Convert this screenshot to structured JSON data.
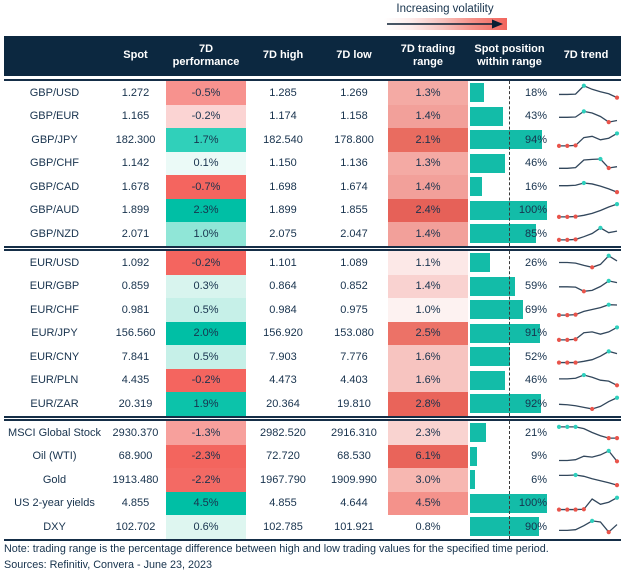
{
  "chart_data": {
    "type": "table",
    "legend_label": "Increasing volatility",
    "columns": [
      "",
      "Spot",
      "7D performance",
      "7D high",
      "7D low",
      "7D trading range",
      "Spot position within range",
      "7D trend"
    ],
    "colors": {
      "header_bg": "#0c2840",
      "text": "#17324d",
      "accent_teal": "#00bfa5",
      "accent_red": "#f4655f",
      "bar_teal": "#13bca8",
      "spark_line": "#32475c",
      "spark_max_dot": "#2ed0bd",
      "spark_min_dot": "#e9544b"
    },
    "sections": [
      {
        "name": "gbp-pairs",
        "rows": [
          {
            "label": "GBP/USD",
            "spot": "1.272",
            "perf": "-0.5%",
            "perf_bg": "#f7928e",
            "high": "1.285",
            "low": "1.269",
            "range": "1.3%",
            "range_bg": "#f4aaa4",
            "position_pct": 18,
            "position_label": "18%",
            "trend": {
              "y": [
                0.38,
                0.38,
                0.4,
                0.92,
                0.7,
                0.55,
                0.42,
                0.18
              ],
              "max": [
                3
              ],
              "min": [
                7
              ]
            }
          },
          {
            "label": "GBP/EUR",
            "spot": "1.165",
            "perf": "-0.2%",
            "perf_bg": "#fbd4d3",
            "high": "1.174",
            "low": "1.158",
            "range": "1.4%",
            "range_bg": "#f2a09a",
            "position_pct": 43,
            "position_label": "43%",
            "trend": {
              "y": [
                0.45,
                0.45,
                0.47,
                0.82,
                0.72,
                0.5,
                0.15,
                0.25
              ],
              "max": [
                3
              ],
              "min": [
                6
              ]
            }
          },
          {
            "label": "GBP/JPY",
            "spot": "182.300",
            "perf": "1.7%",
            "perf_bg": "#30d0ba",
            "high": "182.540",
            "low": "178.800",
            "range": "2.1%",
            "range_bg": "#e96c60",
            "position_pct": 94,
            "position_label": "94%",
            "trend": {
              "y": [
                0.1,
                0.1,
                0.13,
                0.62,
                0.7,
                0.48,
                0.58,
                0.88
              ],
              "max": [
                7
              ],
              "min": [
                0,
                1,
                2
              ]
            }
          },
          {
            "label": "GBP/CHF",
            "spot": "1.142",
            "perf": "0.1%",
            "perf_bg": "#ebfaf7",
            "high": "1.150",
            "low": "1.136",
            "range": "1.3%",
            "range_bg": "#f4aaa4",
            "position_pct": 46,
            "position_label": "46%",
            "trend": {
              "y": [
                0.2,
                0.2,
                0.24,
                0.72,
                0.76,
                0.78,
                0.22,
                0.3
              ],
              "max": [
                5
              ],
              "min": [
                6
              ]
            }
          },
          {
            "label": "GBP/CAD",
            "spot": "1.678",
            "perf": "-0.7%",
            "perf_bg": "#f4655f",
            "high": "1.698",
            "low": "1.674",
            "range": "1.4%",
            "range_bg": "#f2a09a",
            "position_pct": 16,
            "position_label": "16%",
            "trend": {
              "y": [
                0.55,
                0.55,
                0.58,
                0.72,
                0.66,
                0.52,
                0.35,
                0.15
              ],
              "max": [
                3
              ],
              "min": [
                7
              ]
            }
          },
          {
            "label": "GBP/AUD",
            "spot": "1.899",
            "perf": "2.3%",
            "perf_bg": "#00bfa5",
            "high": "1.899",
            "low": "1.855",
            "range": "2.4%",
            "range_bg": "#e66158",
            "position_pct": 100,
            "position_label": "100%",
            "trend": {
              "y": [
                0.1,
                0.1,
                0.12,
                0.2,
                0.32,
                0.5,
                0.72,
                0.9
              ],
              "max": [
                7
              ],
              "min": [
                0,
                1,
                2
              ]
            }
          },
          {
            "label": "GBP/NZD",
            "spot": "2.071",
            "perf": "1.0%",
            "perf_bg": "#90e6d7",
            "high": "2.075",
            "low": "2.047",
            "range": "1.4%",
            "range_bg": "#f2a09a",
            "position_pct": 85,
            "position_label": "85%",
            "trend": {
              "y": [
                0.1,
                0.1,
                0.13,
                0.3,
                0.5,
                0.85,
                0.55,
                0.65
              ],
              "max": [
                5
              ],
              "min": [
                0,
                1,
                2
              ]
            }
          }
        ]
      },
      {
        "name": "eur-pairs",
        "rows": [
          {
            "label": "EUR/USD",
            "spot": "1.092",
            "perf": "-0.2%",
            "perf_bg": "#f4655f",
            "high": "1.101",
            "low": "1.089",
            "range": "1.1%",
            "range_bg": "#fce8e7",
            "position_pct": 26,
            "position_label": "26%",
            "trend": {
              "y": [
                0.5,
                0.5,
                0.46,
                0.32,
                0.2,
                0.38,
                0.92,
                0.6
              ],
              "max": [
                6
              ],
              "min": [
                4
              ]
            }
          },
          {
            "label": "EUR/GBP",
            "spot": "0.859",
            "perf": "0.3%",
            "perf_bg": "#d8f4ee",
            "high": "0.864",
            "low": "0.852",
            "range": "1.4%",
            "range_bg": "#f9d2d0",
            "position_pct": 59,
            "position_label": "59%",
            "trend": {
              "y": [
                0.48,
                0.48,
                0.46,
                0.2,
                0.26,
                0.5,
                0.85,
                0.74
              ],
              "max": [
                6
              ],
              "min": [
                3
              ]
            }
          },
          {
            "label": "EUR/CHF",
            "spot": "0.981",
            "perf": "0.5%",
            "perf_bg": "#c6f0e8",
            "high": "0.984",
            "low": "0.975",
            "range": "1.0%",
            "range_bg": "#fdf2f1",
            "position_pct": 69,
            "position_label": "69%",
            "trend": {
              "y": [
                0.15,
                0.15,
                0.18,
                0.38,
                0.5,
                0.62,
                0.8,
                0.78
              ],
              "max": [
                6
              ],
              "min": [
                0,
                1,
                2
              ]
            }
          },
          {
            "label": "EUR/JPY",
            "spot": "156.560",
            "perf": "2.0%",
            "perf_bg": "#00bfa5",
            "high": "156.920",
            "low": "153.080",
            "range": "2.5%",
            "range_bg": "#ec7267",
            "position_pct": 91,
            "position_label": "91%",
            "trend": {
              "y": [
                0.1,
                0.1,
                0.14,
                0.55,
                0.6,
                0.46,
                0.6,
                0.88
              ],
              "max": [
                7
              ],
              "min": [
                0,
                1,
                2
              ]
            }
          },
          {
            "label": "EUR/CNY",
            "spot": "7.841",
            "perf": "0.5%",
            "perf_bg": "#c6f0e8",
            "high": "7.903",
            "low": "7.776",
            "range": "1.6%",
            "range_bg": "#f7c4c0",
            "position_pct": 52,
            "position_label": "52%",
            "trend": {
              "y": [
                0.12,
                0.12,
                0.12,
                0.2,
                0.3,
                0.52,
                0.82,
                0.68
              ],
              "max": [
                6
              ],
              "min": [
                0,
                1,
                2
              ]
            }
          },
          {
            "label": "EUR/PLN",
            "spot": "4.435",
            "perf": "-0.2%",
            "perf_bg": "#f4655f",
            "high": "4.473",
            "low": "4.403",
            "range": "1.6%",
            "range_bg": "#f7c4c0",
            "position_pct": 46,
            "position_label": "46%",
            "trend": {
              "y": [
                0.6,
                0.6,
                0.64,
                0.84,
                0.7,
                0.52,
                0.46,
                0.2
              ],
              "max": [
                3
              ],
              "min": [
                7
              ]
            }
          },
          {
            "label": "EUR/ZAR",
            "spot": "20.319",
            "perf": "1.9%",
            "perf_bg": "#0cc3aa",
            "high": "20.364",
            "low": "19.810",
            "range": "2.8%",
            "range_bg": "#e9645a",
            "position_pct": 92,
            "position_label": "92%",
            "trend": {
              "y": [
                0.45,
                0.42,
                0.36,
                0.26,
                0.16,
                0.32,
                0.62,
                0.86
              ],
              "max": [
                7
              ],
              "min": [
                4
              ]
            }
          }
        ]
      },
      {
        "name": "other-assets",
        "rows": [
          {
            "label": "MSCI Global Stock",
            "spot": "2930.370",
            "perf": "-1.3%",
            "perf_bg": "#f7a09c",
            "high": "2982.520",
            "low": "2916.310",
            "range": "2.3%",
            "range_bg": "#f9d3d0",
            "position_pct": 21,
            "position_label": "21%",
            "trend": {
              "y": [
                0.85,
                0.85,
                0.85,
                0.74,
                0.5,
                0.3,
                0.15,
                0.15
              ],
              "max": [
                0,
                1,
                2
              ],
              "min": [
                6,
                7
              ]
            }
          },
          {
            "label": "Oil (WTI)",
            "spot": "68.900",
            "perf": "-2.3%",
            "perf_bg": "#f3655e",
            "high": "72.720",
            "low": "68.530",
            "range": "6.1%",
            "range_bg": "#e9645a",
            "position_pct": 9,
            "position_label": "9%",
            "trend": {
              "y": [
                0.25,
                0.25,
                0.3,
                0.52,
                0.46,
                0.6,
                0.85,
                0.2
              ],
              "max": [
                6
              ],
              "min": [
                7
              ]
            }
          },
          {
            "label": "Gold",
            "spot": "1913.480",
            "perf": "-2.2%",
            "perf_bg": "#f36a64",
            "high": "1967.790",
            "low": "1909.990",
            "range": "3.0%",
            "range_bg": "#f7b7b1",
            "position_pct": 6,
            "position_label": "6%",
            "trend": {
              "y": [
                0.76,
                0.76,
                0.78,
                0.7,
                0.55,
                0.42,
                0.3,
                0.15
              ],
              "max": [
                2
              ],
              "min": [
                7
              ]
            }
          },
          {
            "label": "US 2-year yields",
            "spot": "4.855",
            "perf": "4.5%",
            "perf_bg": "#00bfa5",
            "high": "4.855",
            "low": "4.644",
            "range": "4.5%",
            "range_bg": "#f4928b",
            "position_pct": 100,
            "position_label": "100%",
            "trend": {
              "y": [
                0.12,
                0.12,
                0.12,
                0.14,
                0.78,
                0.45,
                0.58,
                0.86
              ],
              "max": [
                7
              ],
              "min": [
                0,
                1,
                2,
                3
              ]
            }
          },
          {
            "label": "DXY",
            "spot": "102.702",
            "perf": "0.6%",
            "perf_bg": "#def6f0",
            "high": "102.785",
            "low": "101.921",
            "range": "0.8%",
            "range_bg": "#ffffff",
            "position_pct": 90,
            "position_label": "90%",
            "trend": {
              "y": [
                0.26,
                0.26,
                0.3,
                0.55,
                0.85,
                0.78,
                0.15,
                0.62
              ],
              "max": [
                4
              ],
              "min": [
                6
              ]
            }
          }
        ]
      }
    ],
    "note": "Note: trading range is the percentage difference between high and low trading values for the specified time period.",
    "sources": "Sources: Refinitiv, Convera - June 23, 2023"
  }
}
